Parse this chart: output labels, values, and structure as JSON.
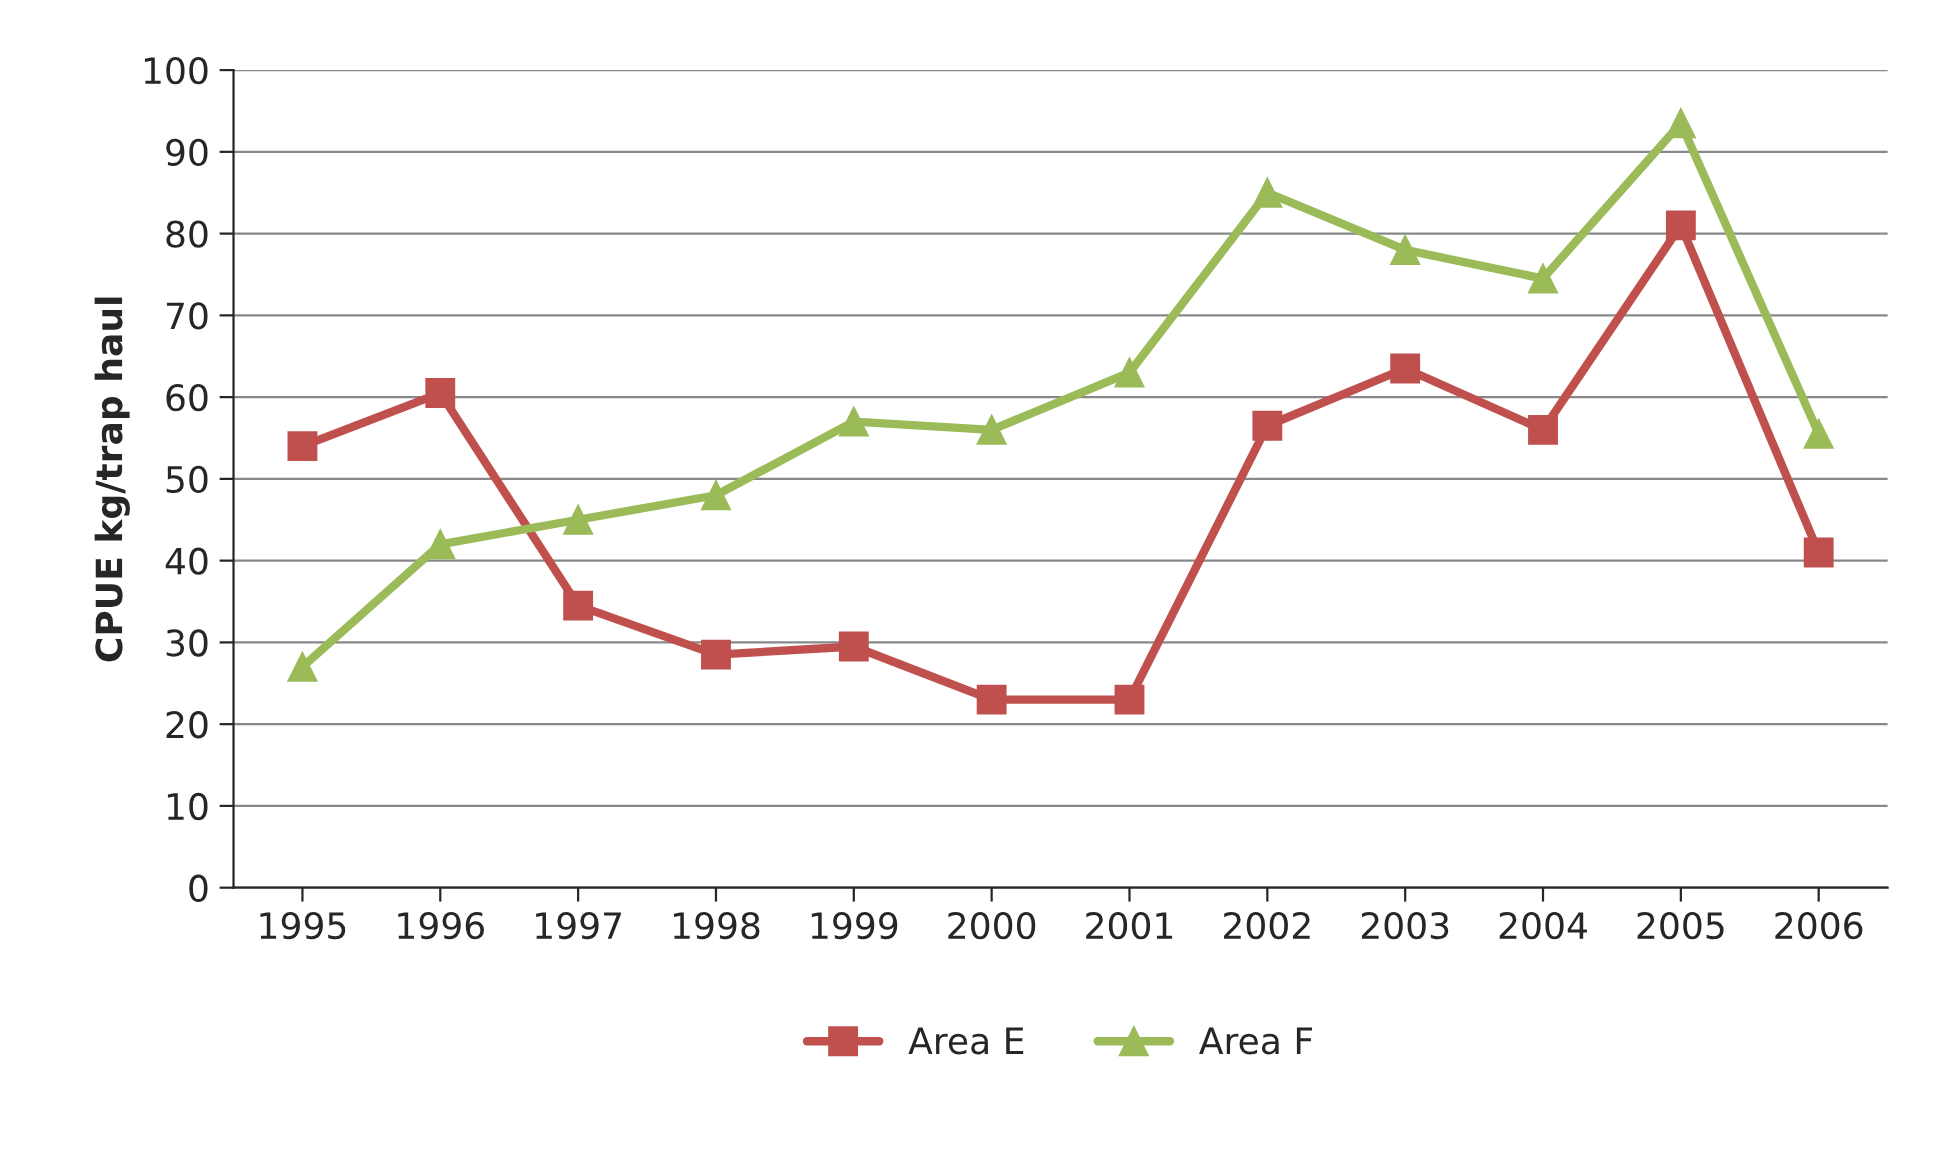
{
  "chart_data": {
    "type": "line",
    "ylabel": "CPUE kg/trap haul",
    "categories": [
      "1995",
      "1996",
      "1997",
      "1998",
      "1999",
      "2000",
      "2001",
      "2002",
      "2003",
      "2004",
      "2005",
      "2006"
    ],
    "series": [
      {
        "name": "Area E",
        "color": "#c0504d",
        "marker": "square",
        "values": [
          54,
          60.5,
          34.5,
          28.5,
          29.5,
          23,
          23,
          56.5,
          63.5,
          56,
          81,
          41
        ]
      },
      {
        "name": "Area F",
        "color": "#9bbb59",
        "marker": "triangle",
        "values": [
          27,
          42,
          45,
          48,
          57,
          56,
          63,
          85,
          78,
          74.5,
          93.5,
          55.5
        ]
      }
    ],
    "ylim": [
      0,
      100
    ],
    "yticks": [
      0,
      10,
      20,
      30,
      40,
      50,
      60,
      70,
      80,
      90,
      100
    ],
    "grid": "y",
    "legend": "bottom",
    "line_style": "solid"
  }
}
